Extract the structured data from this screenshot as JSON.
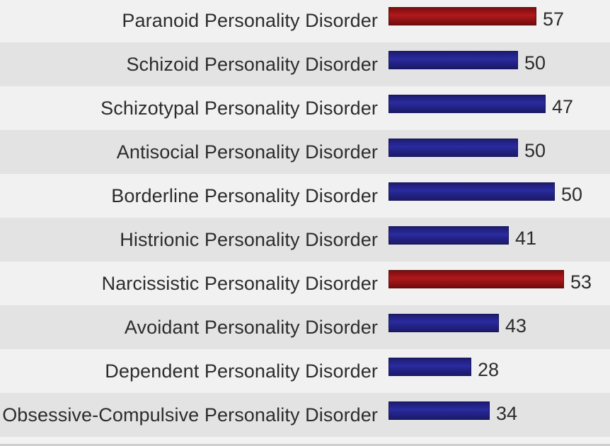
{
  "chart_data": {
    "type": "bar",
    "orientation": "horizontal",
    "categories": [
      "Paranoid Personality Disorder",
      "Schizoid Personality Disorder",
      "Schizotypal Personality Disorder",
      "Antisocial Personality Disorder",
      "Borderline Personality Disorder",
      "Histrionic Personality Disorder",
      "Narcissistic Personality Disorder",
      "Avoidant Personality Disorder",
      "Dependent Personality Disorder",
      "Obsessive-Compulsive Personality Disorder"
    ],
    "values": [
      57,
      50,
      47,
      50,
      50,
      41,
      53,
      43,
      28,
      34
    ],
    "value_labels": [
      "57",
      "50",
      "47",
      "50",
      "50",
      "41",
      "53",
      "43",
      "28",
      "34"
    ],
    "bar_colors": [
      "#a8161a",
      "#26269a",
      "#26269a",
      "#26269a",
      "#26269a",
      "#26269a",
      "#a8161a",
      "#26269a",
      "#26269a",
      "#26269a"
    ],
    "title": "",
    "xlabel": "",
    "ylabel": "",
    "grid": false,
    "legend": "none"
  }
}
